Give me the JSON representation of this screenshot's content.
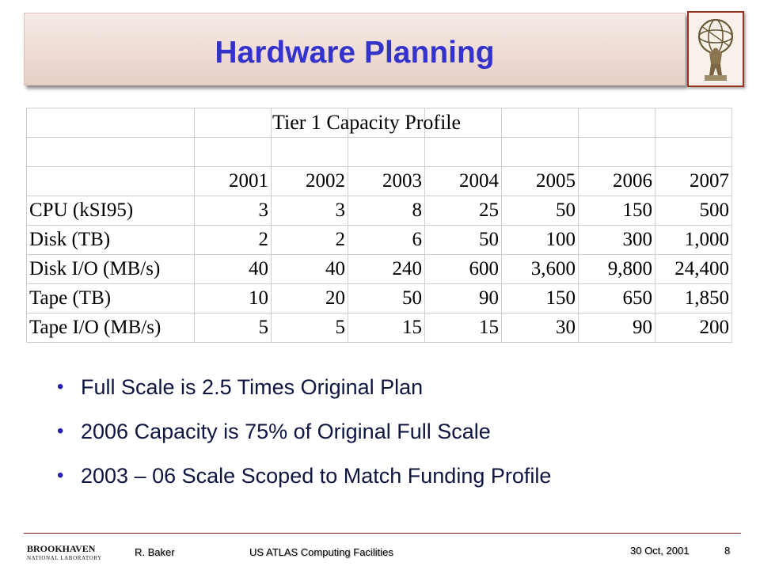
{
  "slide": {
    "title": "Hardware Planning"
  },
  "table": {
    "title": "Tier 1 Capacity Profile",
    "years": [
      "2001",
      "2002",
      "2003",
      "2004",
      "2005",
      "2006",
      "2007"
    ],
    "rows": [
      {
        "label": "CPU (kSI95)",
        "values": [
          "3",
          "3",
          "8",
          "25",
          "50",
          "150",
          "500"
        ]
      },
      {
        "label": "Disk (TB)",
        "values": [
          "2",
          "2",
          "6",
          "50",
          "100",
          "300",
          "1,000"
        ]
      },
      {
        "label": "Disk I/O (MB/s)",
        "values": [
          "40",
          "40",
          "240",
          "600",
          "3,600",
          "9,800",
          "24,400"
        ]
      },
      {
        "label": "Tape (TB)",
        "values": [
          "10",
          "20",
          "50",
          "90",
          "150",
          "650",
          "1,850"
        ]
      },
      {
        "label": "Tape I/O (MB/s)",
        "values": [
          "5",
          "5",
          "15",
          "15",
          "30",
          "90",
          "200"
        ]
      }
    ]
  },
  "bullets": [
    "Full Scale is 2.5 Times Original Plan",
    "2006 Capacity is 75% of Original Full Scale",
    "2003 – 06 Scale Scoped to Match Funding Profile"
  ],
  "footer": {
    "logo_main": "BROOKHAVEN",
    "logo_sub": "NATIONAL LABORATORY",
    "author": "R. Baker",
    "center": "US ATLAS Computing Facilities",
    "date": "30 Oct, 2001",
    "page": "8"
  },
  "colors": {
    "title": "#3333cc",
    "bullet_text": "#0e1540",
    "footer_rule": "#7a1a10"
  }
}
